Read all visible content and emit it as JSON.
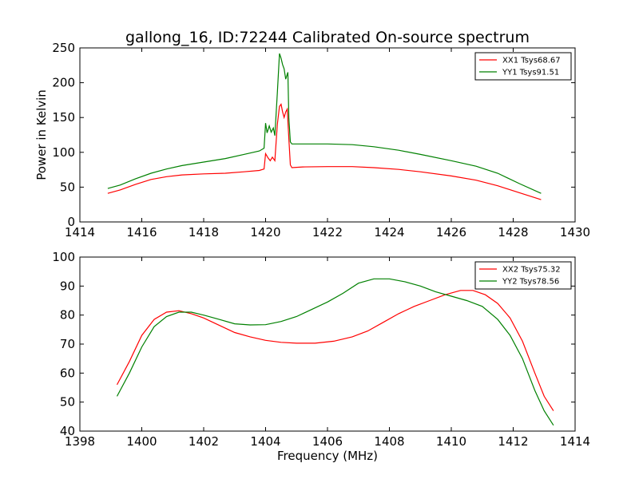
{
  "title": "gallong_16, ID:72244 Calibrated On-source spectrum",
  "colors": {
    "xx": "#ff0000",
    "yy": "#008000"
  },
  "chart_data": [
    {
      "type": "line",
      "ylabel": "Power in Kelvin",
      "xlabel": "",
      "xlim": [
        1414,
        1430
      ],
      "ylim": [
        0,
        250
      ],
      "xticks": [
        1414,
        1416,
        1418,
        1420,
        1422,
        1424,
        1426,
        1428,
        1430
      ],
      "yticks": [
        0,
        50,
        100,
        150,
        200,
        250
      ],
      "legend": "top-right",
      "series": [
        {
          "name": "XX1 Tsys68.67",
          "color": "#ff0000",
          "points": [
            [
              1414.9,
              41
            ],
            [
              1415.3,
              46
            ],
            [
              1415.8,
              54
            ],
            [
              1416.3,
              61
            ],
            [
              1416.8,
              65
            ],
            [
              1417.3,
              67.5
            ],
            [
              1418,
              69
            ],
            [
              1418.7,
              70
            ],
            [
              1419.3,
              72
            ],
            [
              1419.8,
              74
            ],
            [
              1419.95,
              76
            ],
            [
              1420.0,
              98
            ],
            [
              1420.08,
              92
            ],
            [
              1420.15,
              88
            ],
            [
              1420.22,
              93
            ],
            [
              1420.3,
              88
            ],
            [
              1420.38,
              140
            ],
            [
              1420.45,
              166
            ],
            [
              1420.5,
              169
            ],
            [
              1420.55,
              158
            ],
            [
              1420.6,
              150
            ],
            [
              1420.65,
              158
            ],
            [
              1420.7,
              162
            ],
            [
              1420.75,
              120
            ],
            [
              1420.8,
              82
            ],
            [
              1420.85,
              78
            ],
            [
              1421.2,
              79
            ],
            [
              1422,
              79.5
            ],
            [
              1422.8,
              79.5
            ],
            [
              1423.5,
              78
            ],
            [
              1424.3,
              75.5
            ],
            [
              1425,
              72
            ],
            [
              1426,
              66
            ],
            [
              1426.8,
              60
            ],
            [
              1427.5,
              52
            ],
            [
              1428.2,
              42
            ],
            [
              1428.9,
              32
            ]
          ]
        },
        {
          "name": "YY1 Tsys91.51",
          "color": "#008000",
          "points": [
            [
              1414.9,
              48
            ],
            [
              1415.3,
              53
            ],
            [
              1415.8,
              62
            ],
            [
              1416.3,
              70
            ],
            [
              1416.8,
              76
            ],
            [
              1417.3,
              81
            ],
            [
              1418,
              86
            ],
            [
              1418.7,
              91
            ],
            [
              1419.3,
              97
            ],
            [
              1419.8,
              102
            ],
            [
              1419.95,
              106
            ],
            [
              1420.0,
              142
            ],
            [
              1420.05,
              128
            ],
            [
              1420.12,
              138
            ],
            [
              1420.18,
              129
            ],
            [
              1420.25,
              135
            ],
            [
              1420.3,
              124
            ],
            [
              1420.38,
              185
            ],
            [
              1420.45,
              242
            ],
            [
              1420.5,
              235
            ],
            [
              1420.55,
              226
            ],
            [
              1420.6,
              220
            ],
            [
              1420.65,
              205
            ],
            [
              1420.72,
              215
            ],
            [
              1420.75,
              150
            ],
            [
              1420.8,
              115
            ],
            [
              1420.85,
              112
            ],
            [
              1421.2,
              112
            ],
            [
              1422,
              112
            ],
            [
              1422.8,
              111
            ],
            [
              1423.5,
              108
            ],
            [
              1424.3,
              103
            ],
            [
              1425,
              97
            ],
            [
              1426,
              88
            ],
            [
              1426.8,
              80
            ],
            [
              1427.5,
              70
            ],
            [
              1428.2,
              55
            ],
            [
              1428.9,
              41
            ]
          ]
        }
      ]
    },
    {
      "type": "line",
      "xlabel": "Frequency (MHz)",
      "ylabel": "",
      "xlim": [
        1398,
        1414
      ],
      "ylim": [
        40,
        100
      ],
      "xticks": [
        1398,
        1400,
        1402,
        1404,
        1406,
        1408,
        1410,
        1412,
        1414
      ],
      "yticks": [
        40,
        50,
        60,
        70,
        80,
        90,
        100
      ],
      "legend": "top-right",
      "series": [
        {
          "name": "XX2 Tsys75.32",
          "color": "#ff0000",
          "points": [
            [
              1399.2,
              56
            ],
            [
              1399.6,
              64
            ],
            [
              1400,
              73
            ],
            [
              1400.4,
              78.5
            ],
            [
              1400.8,
              81
            ],
            [
              1401.2,
              81.5
            ],
            [
              1401.6,
              80.5
            ],
            [
              1402,
              79
            ],
            [
              1402.5,
              76.5
            ],
            [
              1403,
              74
            ],
            [
              1403.5,
              72.5
            ],
            [
              1404,
              71.3
            ],
            [
              1404.5,
              70.6
            ],
            [
              1405,
              70.3
            ],
            [
              1405.6,
              70.3
            ],
            [
              1406.2,
              71
            ],
            [
              1406.8,
              72.5
            ],
            [
              1407.3,
              74.5
            ],
            [
              1407.8,
              77.5
            ],
            [
              1408.3,
              80.5
            ],
            [
              1408.8,
              83
            ],
            [
              1409.3,
              85
            ],
            [
              1409.8,
              87
            ],
            [
              1410.3,
              88.5
            ],
            [
              1410.7,
              88.5
            ],
            [
              1411.1,
              87
            ],
            [
              1411.5,
              84
            ],
            [
              1411.9,
              79
            ],
            [
              1412.3,
              71
            ],
            [
              1412.7,
              60
            ],
            [
              1413.0,
              52
            ],
            [
              1413.3,
              47
            ]
          ]
        },
        {
          "name": "YY2 Tsys78.56",
          "color": "#008000",
          "points": [
            [
              1399.2,
              52
            ],
            [
              1399.6,
              60
            ],
            [
              1400,
              69
            ],
            [
              1400.4,
              76
            ],
            [
              1400.8,
              79.5
            ],
            [
              1401.2,
              81
            ],
            [
              1401.6,
              81
            ],
            [
              1402,
              80
            ],
            [
              1402.5,
              78.5
            ],
            [
              1403,
              77
            ],
            [
              1403.5,
              76.6
            ],
            [
              1404,
              76.7
            ],
            [
              1404.5,
              77.8
            ],
            [
              1405,
              79.5
            ],
            [
              1405.5,
              82
            ],
            [
              1406,
              84.5
            ],
            [
              1406.5,
              87.5
            ],
            [
              1407,
              91
            ],
            [
              1407.5,
              92.5
            ],
            [
              1408,
              92.5
            ],
            [
              1408.5,
              91.5
            ],
            [
              1409,
              90
            ],
            [
              1409.5,
              88
            ],
            [
              1410,
              86.5
            ],
            [
              1410.5,
              85
            ],
            [
              1411,
              83
            ],
            [
              1411.5,
              78.5
            ],
            [
              1411.9,
              73
            ],
            [
              1412.3,
              65
            ],
            [
              1412.7,
              54
            ],
            [
              1413.0,
              47
            ],
            [
              1413.3,
              42
            ]
          ]
        }
      ]
    }
  ]
}
